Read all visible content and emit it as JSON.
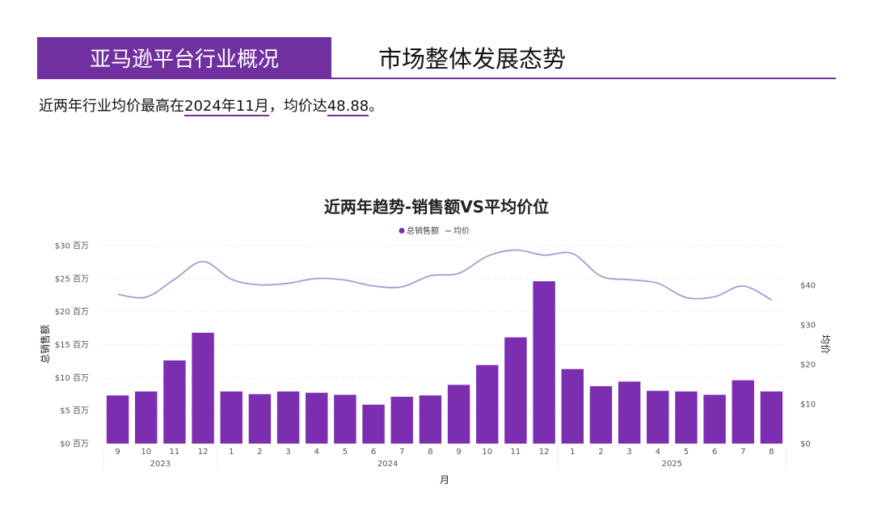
{
  "header": {
    "section": "亚马逊平台行业概况",
    "title": "市场整体发展态势"
  },
  "summary": {
    "prefix": "近两年行业均价最高在",
    "peak_month": "2024年11月",
    "mid": "，均价达",
    "peak_value": "48.88",
    "suffix": "。"
  },
  "colors": {
    "accent": "#7030a0",
    "bar": "#7b2fb0",
    "line": "#a89bd0"
  },
  "chart_data": {
    "type": "bar",
    "title": "近两年趋势-销售额VS平均价位",
    "legend": [
      "总销售额",
      "均价"
    ],
    "legend_placement": "top-center",
    "xlabel": "月",
    "ylabel_left": "总销售额",
    "ylabel_right": "均价",
    "categories": [
      "9",
      "10",
      "11",
      "12",
      "1",
      "2",
      "3",
      "4",
      "5",
      "6",
      "7",
      "8",
      "9",
      "10",
      "11",
      "12",
      "1",
      "2",
      "3",
      "4",
      "5",
      "6",
      "7",
      "8"
    ],
    "year_groups": [
      {
        "label": "2023",
        "start": 0,
        "end": 3
      },
      {
        "label": "2024",
        "start": 4,
        "end": 15
      },
      {
        "label": "2025",
        "start": 16,
        "end": 23
      }
    ],
    "y_left": {
      "min": 0,
      "max": 30,
      "ticks": [
        0,
        5,
        10,
        15,
        20,
        25,
        30
      ],
      "tick_labels": [
        "$0 百万",
        "$5 百万",
        "$10 百万",
        "$15 百万",
        "$20 百万",
        "$25 百万",
        "$30 百万"
      ]
    },
    "y_right": {
      "min": 0,
      "max": 50,
      "ticks": [
        0,
        10,
        20,
        30,
        40
      ],
      "tick_labels": [
        "$0",
        "$10",
        "$20",
        "$30",
        "$40"
      ]
    },
    "series": [
      {
        "name": "总销售额",
        "kind": "bar",
        "axis": "left",
        "values": [
          7.3,
          7.9,
          12.6,
          16.8,
          7.9,
          7.5,
          7.9,
          7.7,
          7.4,
          5.9,
          7.1,
          7.3,
          8.9,
          11.9,
          16.1,
          24.6,
          11.3,
          8.7,
          9.4,
          8.0,
          7.9,
          7.4,
          9.6,
          7.9
        ]
      },
      {
        "name": "均价",
        "kind": "line",
        "axis": "right",
        "values": [
          37.7,
          37.0,
          41.5,
          46.0,
          41.5,
          40.1,
          40.5,
          41.7,
          41.3,
          39.8,
          39.6,
          42.4,
          43.0,
          47.3,
          48.9,
          47.6,
          48.0,
          42.3,
          41.4,
          40.5,
          36.9,
          37.1,
          39.8,
          36.3
        ]
      }
    ],
    "grid": true
  }
}
